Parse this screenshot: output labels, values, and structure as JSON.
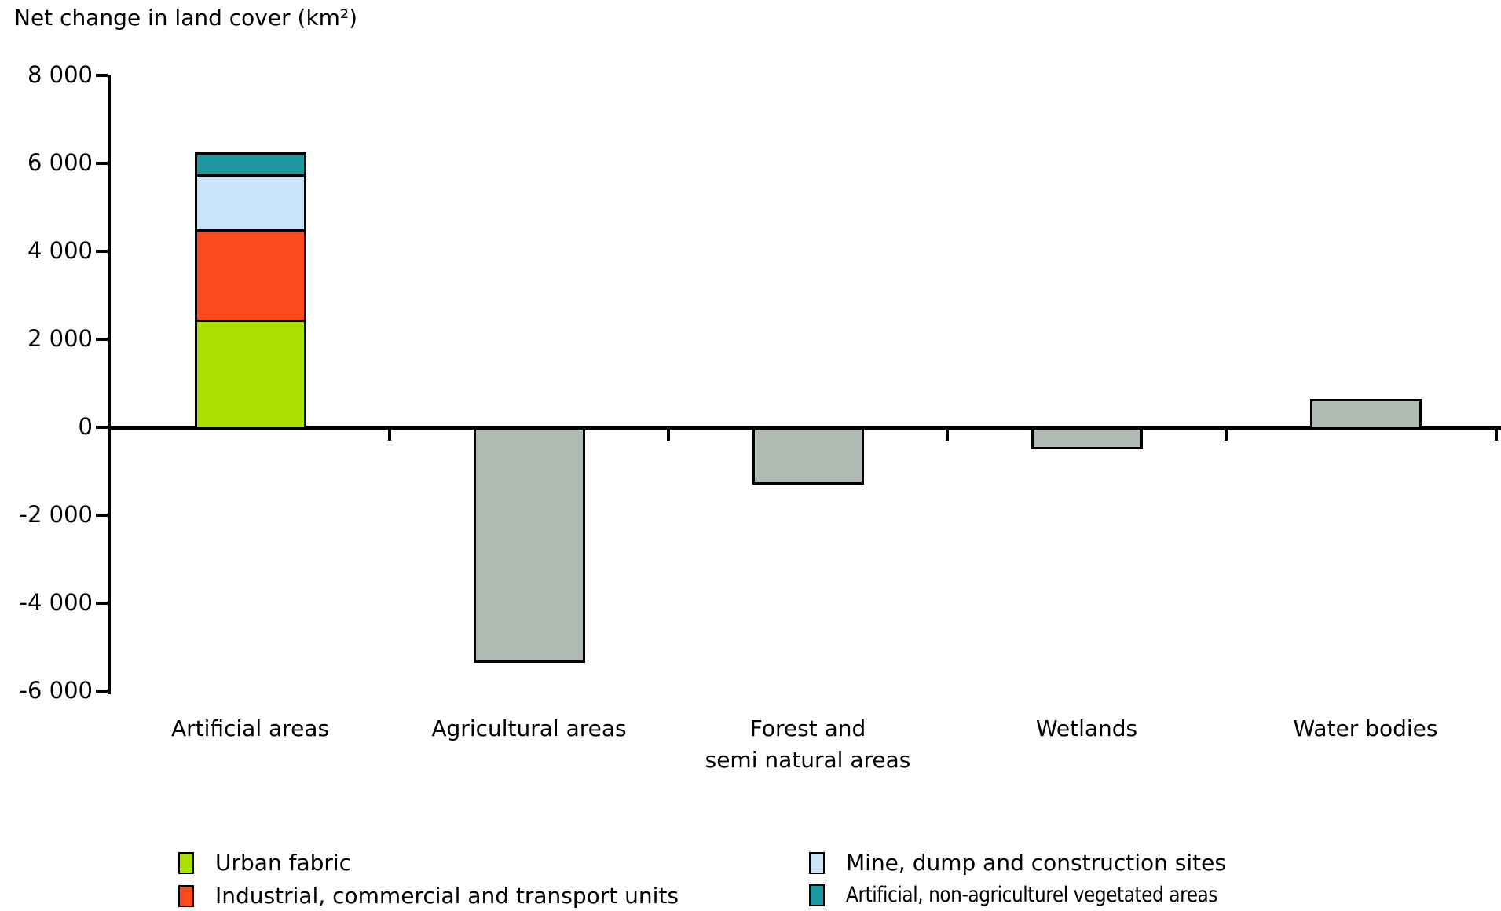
{
  "title": "Net change in land cover (km²)",
  "chart_data": {
    "type": "bar",
    "stacked": true,
    "title": "Net change in land cover (km²)",
    "xlabel": "",
    "ylabel": "Net change in land cover (km²)",
    "ylim": [
      -6000,
      8000
    ],
    "ytick_step": 2000,
    "yticks": [
      {
        "value": 8000,
        "label": "8 000"
      },
      {
        "value": 6000,
        "label": "6 000"
      },
      {
        "value": 4000,
        "label": "4 000"
      },
      {
        "value": 2000,
        "label": "2 000"
      },
      {
        "value": 0,
        "label": "0"
      },
      {
        "value": -2000,
        "label": "-2 000"
      },
      {
        "value": -4000,
        "label": "-4 000"
      },
      {
        "value": -6000,
        "label": "-6 000"
      }
    ],
    "grid": false,
    "legend_position": "bottom",
    "categories": [
      "Artificial areas",
      "Agricultural areas",
      "Forest and semi natural areas",
      "Wetlands",
      "Water bodies"
    ],
    "bars": [
      {
        "category": "Artificial areas",
        "label_lines": [
          "Artificial areas"
        ],
        "total": 6250,
        "segments": [
          {
            "name": "Urban fabric",
            "value": 2450,
            "color": "#a9e000"
          },
          {
            "name": "Industrial, commercial and transport units",
            "value": 2050,
            "color": "#fb4a1e"
          },
          {
            "name": "Mine, dump and construction sites",
            "value": 1250,
            "color": "#c9e4f8"
          },
          {
            "name": "Artificial, non-agriculturel vegetated areas",
            "value": 500,
            "color": "#1e96a0"
          }
        ]
      },
      {
        "category": "Agricultural areas",
        "label_lines": [
          "Agricultural areas"
        ],
        "value": -5300,
        "color": "#afbab2"
      },
      {
        "category": "Forest and semi natural areas",
        "label_lines": [
          "Forest and",
          "semi natural areas"
        ],
        "value": -1250,
        "color": "#afbab2"
      },
      {
        "category": "Wetlands",
        "label_lines": [
          "Wetlands"
        ],
        "value": -450,
        "color": "#afbab2"
      },
      {
        "category": "Water bodies",
        "label_lines": [
          "Water bodies"
        ],
        "value": 650,
        "color": "#afbab2"
      }
    ],
    "legend": {
      "columns": [
        {
          "items": [
            {
              "label": "Urban fabric",
              "color": "#a9e000",
              "condensed": false
            },
            {
              "label": "Industrial, commercial and transport units",
              "color": "#fb4a1e",
              "condensed": false
            }
          ]
        },
        {
          "items": [
            {
              "label": "Mine, dump and construction sites",
              "color": "#c9e4f8",
              "condensed": false
            },
            {
              "label": "Artificial, non-agriculturel vegetated areas",
              "color": "#1e96a0",
              "condensed": true
            }
          ]
        }
      ]
    }
  }
}
